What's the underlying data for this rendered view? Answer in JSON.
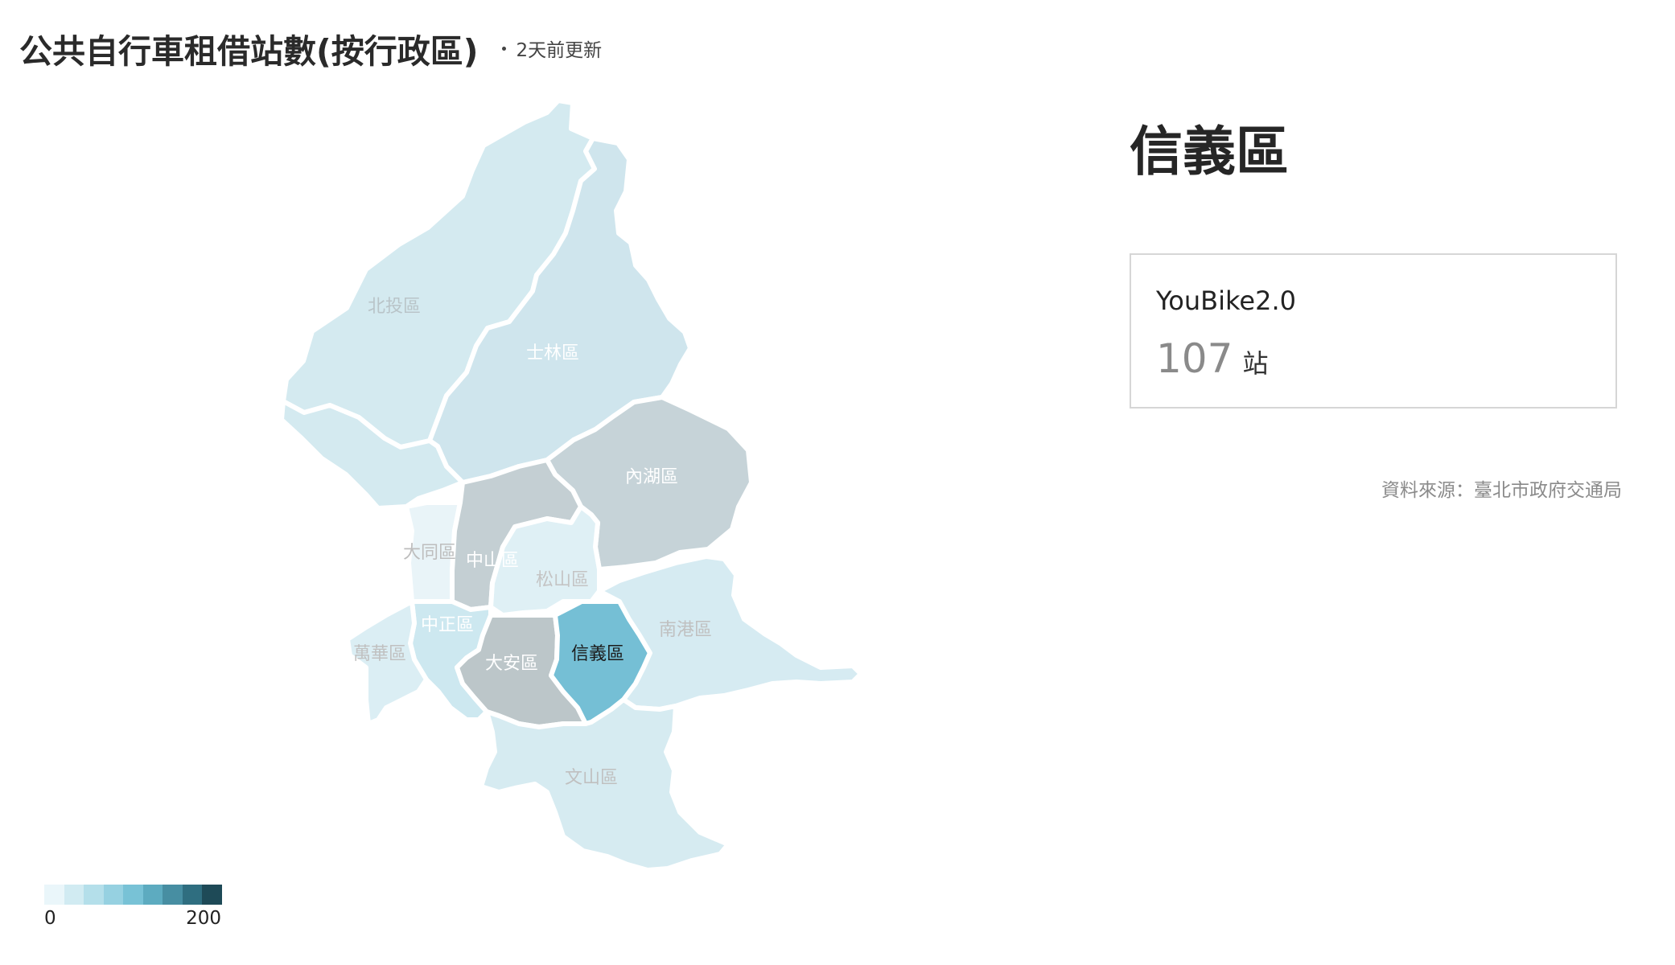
{
  "header": {
    "title": "公共自行車租借站數(按行政區)",
    "update_text": "2天前更新"
  },
  "map": {
    "selected": "信義區",
    "districts": [
      {
        "name": "北投區",
        "color": "#d4eaf0",
        "label_color": "#b9c4c8"
      },
      {
        "name": "士林區",
        "color": "#cfe5ed",
        "label_color": "#ffffff"
      },
      {
        "name": "內湖區",
        "color": "#c6d3d8",
        "label_color": "#ffffff"
      },
      {
        "name": "大同區",
        "color": "#e9f4f8",
        "label_color": "#bdbdbd"
      },
      {
        "name": "中山區",
        "color": "#c4cfd3",
        "label_color": "#ffffff"
      },
      {
        "name": "松山區",
        "color": "#dff0f5",
        "label_color": "#c4c4c4"
      },
      {
        "name": "中正區",
        "color": "#cde8f0",
        "label_color": "#ffffff"
      },
      {
        "name": "萬華區",
        "color": "#dbeef4",
        "label_color": "#c0c0c0"
      },
      {
        "name": "大安區",
        "color": "#bcc6c9",
        "label_color": "#ffffff"
      },
      {
        "name": "信義區",
        "color": "#75bfd5",
        "label_color": "#1c1c1c"
      },
      {
        "name": "南港區",
        "color": "#d6ebf2",
        "label_color": "#c0c0c0"
      },
      {
        "name": "文山區",
        "color": "#d6ebf1",
        "label_color": "#c0c0c0"
      }
    ]
  },
  "legend": {
    "min_label": "0",
    "max_label": "200",
    "colors": [
      "#eaf6fa",
      "#d1ebf2",
      "#b4dfea",
      "#96d1e1",
      "#78c2d6",
      "#5dabc0",
      "#478ea2",
      "#2f6e80",
      "#1e4a57"
    ]
  },
  "detail": {
    "district": "信義區",
    "card": {
      "label": "YouBike2.0",
      "value": "107",
      "unit": "站"
    }
  },
  "source": "資料來源：臺北市政府交通局"
}
